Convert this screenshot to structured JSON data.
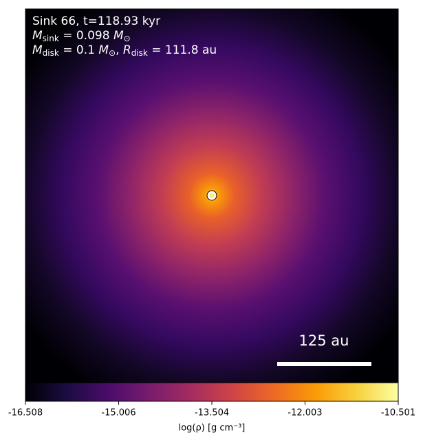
{
  "chart_data": {
    "type": "density_map",
    "annotations": [
      {
        "parts": [
          "Sink 66, t=118.93 kyr"
        ]
      },
      {
        "parts": [
          "M",
          "sink",
          " = 0.098 ",
          "M",
          "⊙"
        ]
      },
      {
        "parts": [
          "M",
          "disk",
          " = 0.1 ",
          "M",
          "⊙",
          ", ",
          "R",
          "disk",
          " = 111.8 au"
        ]
      }
    ],
    "scale_bar": "125 au",
    "colorbar_label": "log(ρ) [g cm⁻³]",
    "clim": [
      -16.508,
      -10.501
    ],
    "cticks": [
      -16.508,
      -15.006,
      -13.504,
      -12.003,
      -10.501
    ],
    "colormap": [
      "#000004",
      "#1b0c41",
      "#4a0c6b",
      "#781c6d",
      "#a52c60",
      "#cf4446",
      "#ed6925",
      "#fb9b06",
      "#f7d13d",
      "#fcffa4"
    ]
  }
}
